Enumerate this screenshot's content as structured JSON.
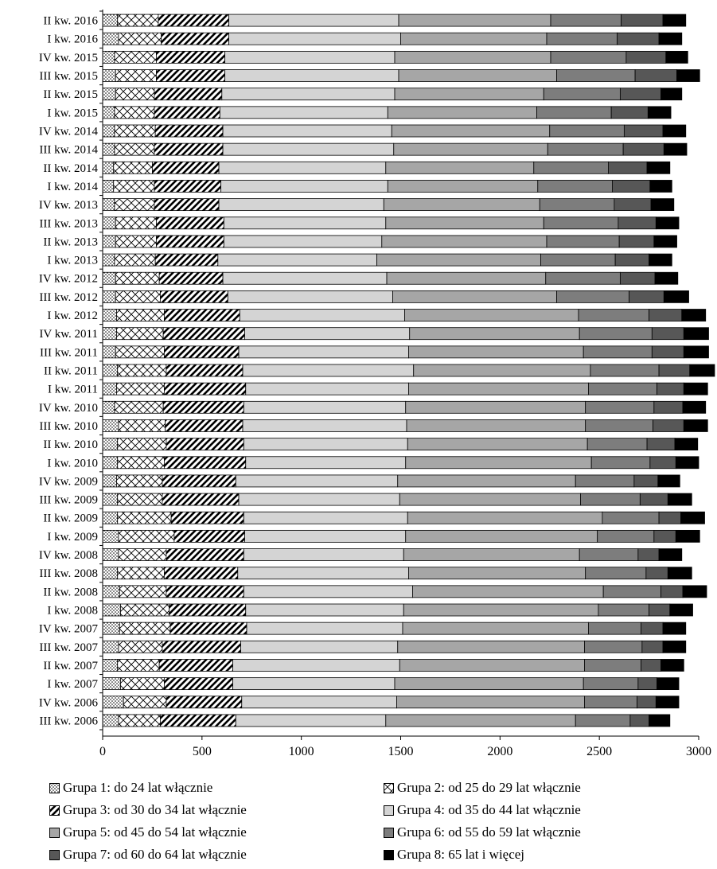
{
  "chart_data": {
    "type": "bar",
    "orientation": "horizontal",
    "stacked": true,
    "title": "",
    "xlabel": "",
    "ylabel": "",
    "xlim": [
      0,
      3000
    ],
    "x_ticks": [
      "0",
      "500",
      "1000",
      "1500",
      "2000",
      "2500",
      "3000"
    ],
    "grid": false,
    "legend_position": "bottom",
    "categories": [
      "II kw. 2016",
      "I kw. 2016",
      "IV kw. 2015",
      "III kw. 2015",
      "II kw. 2015",
      "I kw. 2015",
      "IV kw. 2014",
      "III kw. 2014",
      "II kw. 2014",
      "I kw. 2014",
      "IV kw. 2013",
      "III kw. 2013",
      "II kw. 2013",
      "I kw. 2013",
      "IV kw. 2012",
      "III kw. 2012",
      "I kw. 2012",
      "IV kw. 2011",
      "III kw. 2011",
      "II kw. 2011",
      "I kw. 2011",
      "IV kw. 2010",
      "III kw. 2010",
      "II kw. 2010",
      "I kw. 2010",
      "IV kw. 2009",
      "III kw. 2009",
      "II kw. 2009",
      "I kw. 2009",
      "IV kw. 2008",
      "III kw. 2008",
      "II kw. 2008",
      "I kw. 2008",
      "IV kw. 2007",
      "III kw. 2007",
      "II kw. 2007",
      "I kw. 2007",
      "IV kw. 2006",
      "III kw. 2006"
    ],
    "series": [
      {
        "name": "Grupa 1: do 24 lat włącznie",
        "values": [
          75,
          80,
          60,
          65,
          65,
          60,
          60,
          60,
          55,
          55,
          60,
          65,
          65,
          60,
          65,
          65,
          70,
          70,
          65,
          75,
          70,
          60,
          80,
          75,
          75,
          70,
          75,
          75,
          80,
          80,
          75,
          85,
          90,
          85,
          80,
          75,
          90,
          105,
          80
        ]
      },
      {
        "name": "Grupa 2: od 25 do 29 lat włącznie",
        "values": [
          205,
          215,
          210,
          205,
          195,
          200,
          205,
          200,
          195,
          205,
          200,
          205,
          205,
          205,
          220,
          225,
          240,
          235,
          245,
          245,
          240,
          245,
          235,
          245,
          235,
          230,
          225,
          270,
          280,
          240,
          235,
          235,
          245,
          255,
          220,
          210,
          220,
          215,
          210
        ]
      },
      {
        "name": "Grupa 3: od 30 do 34 lat włącznie",
        "values": [
          355,
          340,
          345,
          345,
          340,
          330,
          340,
          345,
          335,
          335,
          325,
          340,
          340,
          315,
          320,
          340,
          380,
          410,
          375,
          385,
          410,
          405,
          390,
          390,
          410,
          370,
          385,
          365,
          355,
          390,
          370,
          390,
          385,
          385,
          395,
          370,
          345,
          380,
          380
        ]
      },
      {
        "name": "Grupa 4: od 35 do 44 lat włącznie",
        "values": [
          855,
          865,
          855,
          875,
          870,
          845,
          850,
          860,
          840,
          840,
          830,
          815,
          795,
          800,
          825,
          830,
          830,
          830,
          855,
          860,
          820,
          815,
          825,
          825,
          805,
          815,
          810,
          825,
          810,
          805,
          860,
          850,
          795,
          785,
          790,
          840,
          815,
          780,
          755
        ]
      },
      {
        "name": "Grupa 5: od 45 do 54 lat włącznie",
        "values": [
          765,
          735,
          785,
          795,
          750,
          750,
          795,
          775,
          745,
          755,
          785,
          795,
          830,
          825,
          800,
          825,
          875,
          855,
          880,
          890,
          905,
          905,
          900,
          905,
          935,
          895,
          910,
          980,
          965,
          885,
          890,
          960,
          980,
          935,
          940,
          930,
          950,
          945,
          955
        ]
      },
      {
        "name": "Grupa 6: od 55 do 59 lat włącznie",
        "values": [
          355,
          355,
          380,
          395,
          385,
          375,
          375,
          380,
          375,
          375,
          375,
          375,
          365,
          375,
          375,
          365,
          355,
          365,
          345,
          345,
          345,
          345,
          340,
          300,
          295,
          295,
          300,
          285,
          285,
          295,
          305,
          290,
          255,
          265,
          290,
          285,
          275,
          265,
          275
        ]
      },
      {
        "name": "Grupa 7: od 60 do 64 lat włącznie",
        "values": [
          210,
          210,
          200,
          210,
          205,
          185,
          195,
          205,
          195,
          190,
          185,
          190,
          175,
          170,
          175,
          175,
          165,
          160,
          160,
          155,
          135,
          145,
          155,
          140,
          130,
          120,
          140,
          110,
          110,
          105,
          110,
          110,
          105,
          110,
          105,
          100,
          95,
          95,
          95
        ]
      },
      {
        "name": "Grupa 8: 65 lat i więcej",
        "values": [
          115,
          115,
          110,
          115,
          105,
          115,
          115,
          115,
          115,
          110,
          115,
          115,
          115,
          115,
          115,
          125,
          120,
          125,
          125,
          125,
          120,
          115,
          120,
          115,
          115,
          110,
          120,
          120,
          120,
          115,
          120,
          120,
          115,
          115,
          115,
          115,
          110,
          115,
          105
        ]
      }
    ]
  }
}
